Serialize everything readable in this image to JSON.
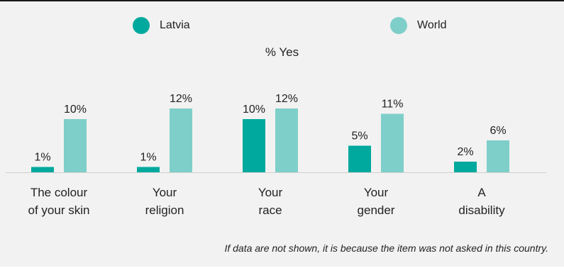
{
  "legend": [
    {
      "label": "Latvia",
      "color": "#00a99d"
    },
    {
      "label": "World",
      "color": "#7ecfc9"
    }
  ],
  "subtitle": "% Yes",
  "footnote": "If data are not shown, it is because the item was not asked in this country.",
  "chart_data": {
    "type": "bar",
    "categories": [
      [
        "The colour",
        "of your skin"
      ],
      [
        "Your",
        "religion"
      ],
      [
        "Your",
        "race"
      ],
      [
        "Your",
        "gender"
      ],
      [
        "A",
        "disability"
      ]
    ],
    "series": [
      {
        "name": "Latvia",
        "values": [
          1,
          1,
          10,
          5,
          2
        ],
        "labels": [
          "1%",
          "1%",
          "10%",
          "5%",
          "2%"
        ],
        "color": "#00a99d"
      },
      {
        "name": "World",
        "values": [
          10,
          12,
          12,
          11,
          6
        ],
        "labels": [
          "10%",
          "12%",
          "12%",
          "11%",
          "6%"
        ],
        "color": "#7ecfc9"
      }
    ],
    "ylim": [
      0,
      12
    ],
    "grid": false,
    "legend_position": "top"
  }
}
